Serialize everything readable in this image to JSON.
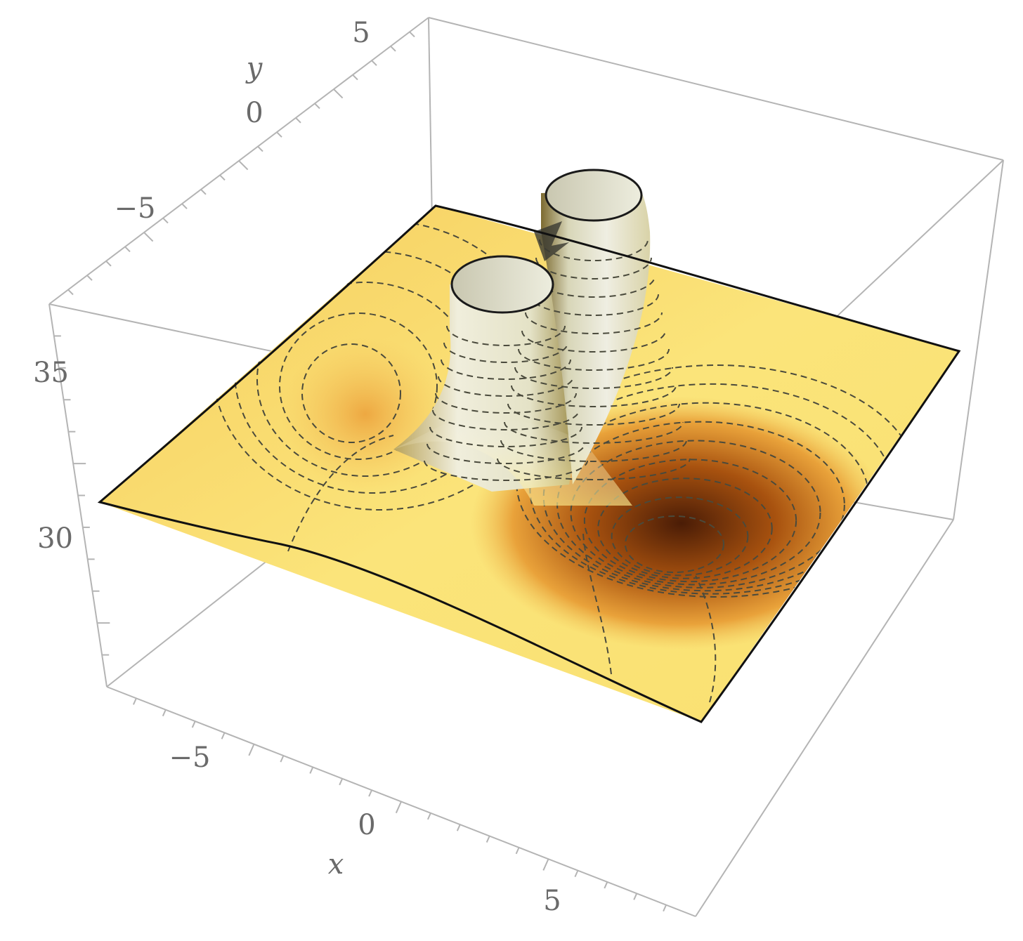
{
  "chart_data": {
    "type": "surface3d",
    "title": "",
    "xlabel": "x",
    "ylabel": "y",
    "zlabel": "",
    "xlim": [
      -8,
      8
    ],
    "ylim": [
      -8,
      8
    ],
    "zlim": [
      26,
      38
    ],
    "x_ticks": [
      {
        "value": -5,
        "label": "−5"
      },
      {
        "value": 0,
        "label": "0"
      },
      {
        "value": 5,
        "label": "5"
      }
    ],
    "y_ticks": [
      {
        "value": -5,
        "label": "−5"
      },
      {
        "value": 0,
        "label": "0"
      },
      {
        "value": 5,
        "label": "5"
      }
    ],
    "z_ticks": [
      {
        "value": 30,
        "label": "30"
      },
      {
        "value": 35,
        "label": "35"
      }
    ],
    "surface": {
      "base_level": 31,
      "features": [
        {
          "kind": "peak",
          "x": 0.7,
          "y": 2.3,
          "clipped_at_z": 38
        },
        {
          "kind": "peak",
          "x": -1.3,
          "y": 0.8,
          "clipped_at_z": 38
        },
        {
          "kind": "well",
          "x": 4.7,
          "y": -0.3,
          "min_z": 28
        }
      ],
      "contour_lines": true,
      "mesh": false
    },
    "colors": {
      "surface_low": "#6a2c0c",
      "surface_mid": "#e8a43c",
      "surface_high": "#fff08a",
      "surface_top": "#e6e6dc",
      "box": "#b4b4b4",
      "contour": "#4a4a3c"
    }
  }
}
